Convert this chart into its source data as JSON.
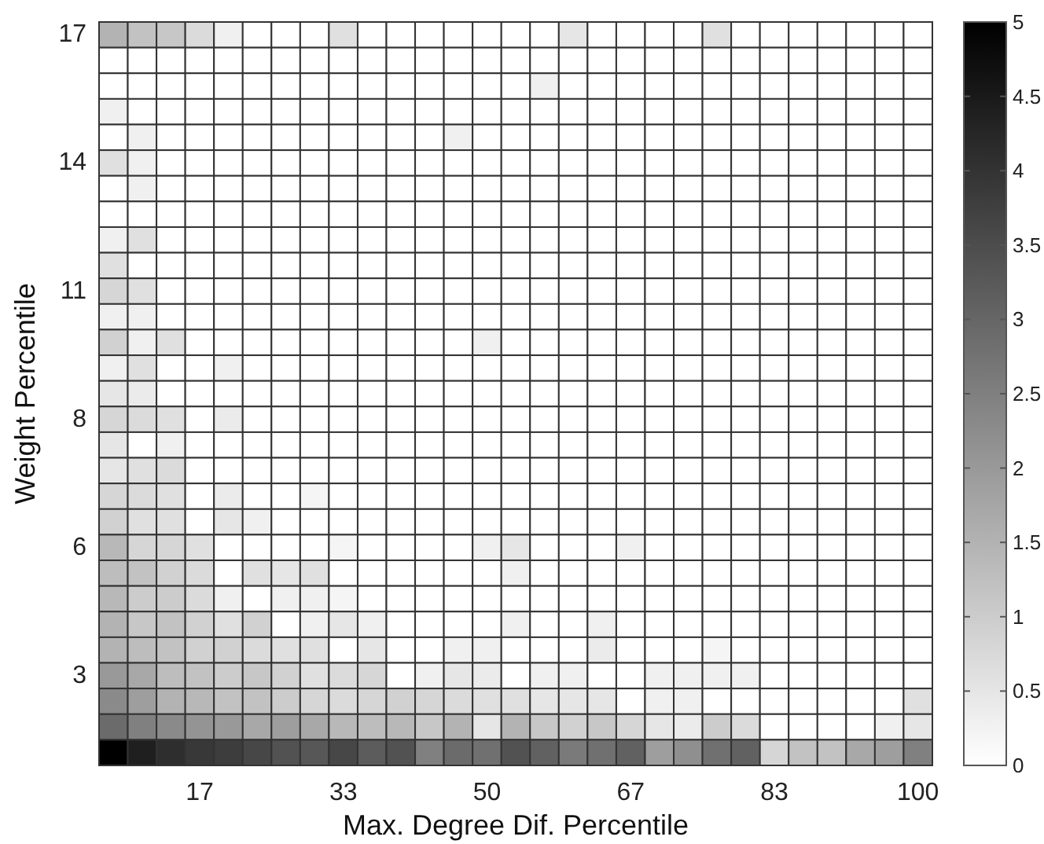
{
  "chart_data": {
    "type": "heatmap",
    "xlabel": "Max. Degree Dif. Percentile",
    "ylabel": "Weight Percentile",
    "categories": [
      null,
      null,
      null,
      "17",
      null,
      null,
      null,
      null,
      "33",
      null,
      null,
      null,
      null,
      "50",
      null,
      null,
      null,
      null,
      "67",
      null,
      null,
      null,
      null,
      "83",
      null,
      null,
      null,
      null,
      "100"
    ],
    "y_categories": [
      "17",
      null,
      null,
      null,
      null,
      "14",
      null,
      null,
      null,
      null,
      "11",
      null,
      null,
      null,
      null,
      "8",
      null,
      null,
      null,
      null,
      "6",
      null,
      null,
      null,
      null,
      "3",
      null,
      null,
      null
    ],
    "clim": [
      0,
      5
    ],
    "cticks": [
      0,
      0.5,
      1,
      1.5,
      2,
      2.5,
      3,
      3.5,
      4,
      4.5,
      5
    ],
    "cells": [
      [
        1.5,
        1.2,
        1.1,
        0.7,
        0.3,
        0,
        0,
        0,
        0.6,
        0,
        0,
        0,
        0,
        0,
        0,
        0,
        0.5,
        0,
        0,
        0,
        0,
        0.6,
        0,
        0,
        0,
        0,
        0,
        0,
        0
      ],
      [
        0,
        0,
        0,
        0,
        0,
        0,
        0,
        0,
        0,
        0,
        0,
        0,
        0,
        0,
        0,
        0,
        0,
        0,
        0,
        0,
        0,
        0,
        0,
        0,
        0,
        0,
        0,
        0,
        0
      ],
      [
        0,
        0,
        0,
        0,
        0,
        0,
        0,
        0,
        0,
        0,
        0,
        0,
        0,
        0,
        0,
        0.3,
        0,
        0,
        0,
        0,
        0,
        0,
        0,
        0,
        0,
        0,
        0,
        0,
        0
      ],
      [
        0.3,
        0,
        0,
        0,
        0,
        0,
        0,
        0,
        0,
        0,
        0,
        0,
        0,
        0,
        0,
        0,
        0,
        0,
        0,
        0,
        0,
        0,
        0,
        0,
        0,
        0,
        0,
        0,
        0
      ],
      [
        0,
        0.3,
        0,
        0,
        0,
        0,
        0,
        0,
        0,
        0,
        0,
        0,
        0.3,
        0,
        0,
        0,
        0,
        0,
        0,
        0,
        0,
        0,
        0,
        0,
        0,
        0,
        0,
        0,
        0
      ],
      [
        0.6,
        0.3,
        0,
        0,
        0,
        0,
        0,
        0,
        0,
        0,
        0,
        0,
        0,
        0,
        0,
        0,
        0,
        0,
        0,
        0,
        0,
        0,
        0,
        0,
        0,
        0,
        0,
        0,
        0
      ],
      [
        0,
        0.3,
        0,
        0,
        0,
        0,
        0,
        0,
        0,
        0,
        0,
        0,
        0,
        0,
        0,
        0,
        0,
        0,
        0,
        0,
        0,
        0,
        0,
        0,
        0,
        0,
        0,
        0,
        0
      ],
      [
        0,
        0,
        0,
        0,
        0,
        0,
        0,
        0,
        0,
        0,
        0,
        0,
        0,
        0,
        0,
        0,
        0,
        0,
        0,
        0,
        0,
        0,
        0,
        0,
        0,
        0,
        0,
        0,
        0
      ],
      [
        0.3,
        0.6,
        0,
        0,
        0,
        0,
        0,
        0,
        0,
        0,
        0,
        0,
        0,
        0,
        0,
        0,
        0,
        0,
        0,
        0,
        0,
        0,
        0,
        0,
        0,
        0,
        0,
        0,
        0
      ],
      [
        0.6,
        0,
        0,
        0,
        0,
        0,
        0,
        0,
        0,
        0,
        0,
        0,
        0,
        0,
        0,
        0,
        0,
        0,
        0,
        0,
        0,
        0,
        0,
        0,
        0,
        0,
        0,
        0,
        0
      ],
      [
        0.8,
        0.6,
        0,
        0,
        0,
        0,
        0,
        0,
        0,
        0,
        0,
        0,
        0,
        0,
        0,
        0,
        0,
        0,
        0,
        0,
        0,
        0,
        0,
        0,
        0,
        0,
        0,
        0,
        0
      ],
      [
        0.3,
        0.3,
        0,
        0,
        0,
        0,
        0,
        0,
        0,
        0,
        0,
        0,
        0,
        0,
        0,
        0,
        0,
        0,
        0,
        0,
        0,
        0,
        0,
        0,
        0,
        0,
        0,
        0,
        0
      ],
      [
        0.9,
        0.3,
        0.6,
        0,
        0,
        0,
        0,
        0,
        0,
        0,
        0,
        0,
        0,
        0.3,
        0,
        0,
        0,
        0,
        0,
        0,
        0,
        0,
        0,
        0,
        0,
        0,
        0,
        0,
        0
      ],
      [
        0.3,
        0.6,
        0,
        0,
        0.3,
        0,
        0,
        0,
        0,
        0,
        0,
        0,
        0,
        0,
        0,
        0,
        0,
        0,
        0,
        0,
        0,
        0,
        0,
        0,
        0,
        0,
        0,
        0,
        0
      ],
      [
        0.5,
        0.4,
        0,
        0,
        0,
        0,
        0,
        0,
        0,
        0,
        0,
        0,
        0,
        0,
        0,
        0,
        0,
        0,
        0,
        0,
        0,
        0,
        0,
        0,
        0,
        0,
        0,
        0,
        0
      ],
      [
        0.8,
        0.7,
        0.6,
        0,
        0.4,
        0,
        0,
        0,
        0,
        0,
        0,
        0,
        0,
        0,
        0,
        0,
        0,
        0,
        0,
        0,
        0,
        0,
        0,
        0,
        0,
        0,
        0,
        0,
        0
      ],
      [
        0.5,
        0,
        0.3,
        0,
        0,
        0,
        0,
        0,
        0,
        0,
        0,
        0,
        0,
        0,
        0,
        0,
        0,
        0,
        0,
        0,
        0,
        0,
        0,
        0,
        0,
        0,
        0,
        0,
        0
      ],
      [
        0.5,
        0.6,
        0.7,
        0,
        0,
        0,
        0,
        0,
        0,
        0,
        0,
        0,
        0,
        0,
        0,
        0,
        0,
        0,
        0,
        0,
        0,
        0,
        0,
        0,
        0,
        0,
        0,
        0,
        0
      ],
      [
        0.8,
        0.7,
        0.6,
        0,
        0.4,
        0,
        0,
        0.2,
        0,
        0,
        0,
        0,
        0,
        0,
        0,
        0,
        0,
        0,
        0,
        0,
        0,
        0,
        0,
        0,
        0,
        0,
        0,
        0,
        0
      ],
      [
        0.9,
        0.6,
        0.6,
        0,
        0.5,
        0.3,
        0,
        0,
        0,
        0,
        0,
        0,
        0,
        0,
        0,
        0,
        0,
        0,
        0,
        0,
        0,
        0,
        0,
        0,
        0,
        0,
        0,
        0,
        0
      ],
      [
        1.4,
        0.8,
        0.8,
        0.6,
        0,
        0,
        0,
        0,
        0.2,
        0,
        0,
        0,
        0,
        0.3,
        0.5,
        0,
        0,
        0,
        0.3,
        0,
        0,
        0,
        0,
        0,
        0,
        0,
        0,
        0,
        0
      ],
      [
        1.3,
        1.2,
        0.9,
        0.7,
        0,
        0.6,
        0.5,
        0.6,
        0,
        0,
        0,
        0,
        0,
        0,
        0.3,
        0,
        0,
        0,
        0,
        0,
        0,
        0,
        0,
        0,
        0,
        0,
        0,
        0,
        0
      ],
      [
        1.4,
        1,
        1,
        0.7,
        0.3,
        0,
        0.3,
        0.3,
        0.2,
        0,
        0,
        0,
        0,
        0,
        0,
        0,
        0,
        0,
        0,
        0,
        0,
        0,
        0,
        0,
        0,
        0,
        0,
        0,
        0
      ],
      [
        1.5,
        1.1,
        1.2,
        0.9,
        0.6,
        0.9,
        0,
        0.3,
        0.5,
        0.3,
        0,
        0,
        0,
        0,
        0.3,
        0,
        0,
        0.3,
        0,
        0,
        0,
        0,
        0,
        0,
        0,
        0,
        0,
        0,
        0
      ],
      [
        1.5,
        1.3,
        1.2,
        0.9,
        0.9,
        0.7,
        0.6,
        0.6,
        0,
        0.5,
        0,
        0,
        0.3,
        0.3,
        0,
        0,
        0,
        0.4,
        0,
        0,
        0,
        0.2,
        0,
        0,
        0,
        0,
        0,
        0,
        0
      ],
      [
        2,
        1.7,
        1.3,
        1.2,
        1,
        1.1,
        0.9,
        0.6,
        0.7,
        0.8,
        0,
        0.3,
        0.5,
        0.4,
        0,
        0.3,
        0.3,
        0,
        0,
        0.3,
        0.3,
        0.3,
        0.3,
        0,
        0,
        0,
        0,
        0,
        0
      ],
      [
        2.3,
        1.9,
        1.5,
        1.4,
        1.2,
        1.2,
        1,
        0.8,
        0.7,
        0.8,
        0.9,
        0.8,
        0.7,
        0.6,
        0.6,
        0.5,
        0.5,
        0.5,
        0,
        0.3,
        0.3,
        0,
        0,
        0,
        0,
        0,
        0,
        0,
        0.6
      ],
      [
        2.9,
        2.5,
        2.3,
        2.1,
        2,
        1.7,
        1.9,
        1.7,
        1.4,
        1.3,
        1.4,
        1.1,
        1.5,
        0.5,
        1.5,
        1.1,
        0.9,
        1.1,
        0.8,
        0.5,
        0.4,
        1,
        0.7,
        0,
        0,
        0,
        0,
        0.3,
        0.5
      ],
      [
        5,
        4.4,
        4.1,
        3.9,
        3.8,
        3.6,
        3.4,
        3.3,
        3.6,
        3.2,
        3.4,
        2.5,
        2.9,
        2.8,
        3.4,
        3.1,
        2.6,
        2.8,
        3.1,
        1.9,
        2.2,
        2.8,
        3.1,
        0.8,
        1.2,
        1.2,
        1.7,
        1.9,
        2.5
      ]
    ]
  }
}
